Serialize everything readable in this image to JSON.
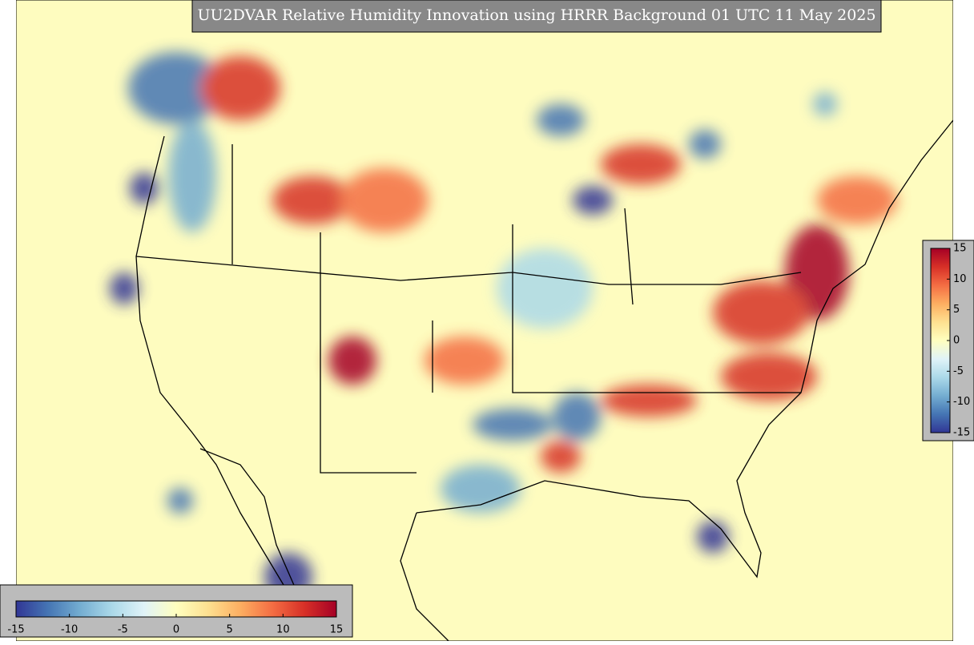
{
  "title": "UU2DVAR Relative Humidity Innovation using HRRR Background 01 UTC 11 May 2025",
  "colorbar": {
    "clim": [
      -15,
      15
    ],
    "ticks": [
      -15,
      -10,
      -5,
      0,
      5,
      10,
      15
    ],
    "colors": [
      "#313695",
      "#4575b4",
      "#74add1",
      "#abd9e9",
      "#e0f3f8",
      "#ffffbf",
      "#fee090",
      "#fdae61",
      "#f46d43",
      "#d73027",
      "#a50026"
    ]
  }
}
